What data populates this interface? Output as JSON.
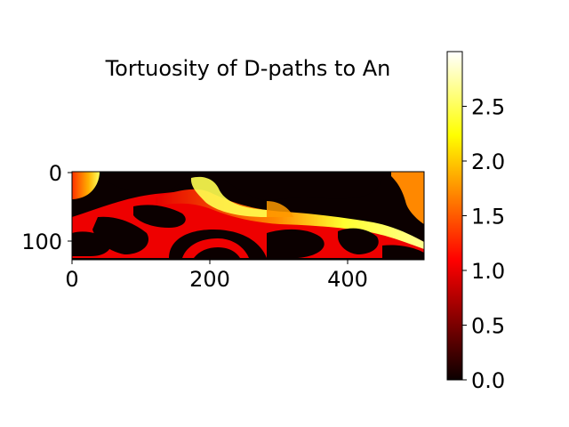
{
  "chart_data": {
    "type": "heatmap",
    "title": "Tortuosity of D-paths to An",
    "xlabel": "",
    "ylabel": "",
    "image_extent": {
      "x": [
        0,
        512
      ],
      "y": [
        128,
        0
      ]
    },
    "x_ticks": [
      0,
      200,
      400
    ],
    "x_tick_labels": [
      "0",
      "200",
      "400"
    ],
    "y_ticks": [
      0,
      100
    ],
    "y_tick_labels": [
      "0",
      "100"
    ],
    "colorbar": {
      "colormap": "hot",
      "range": [
        0.0,
        3.0
      ],
      "ticks": [
        0.0,
        0.5,
        1.0,
        1.5,
        2.0,
        2.5
      ],
      "tick_labels": [
        "0.0",
        "0.5",
        "1.0",
        "1.5",
        "2.0",
        "2.5"
      ]
    },
    "value_notes": "pore space shows tortuosity ~1.0-3.0 (red to white); solid phase is 0.0 (black)",
    "grid": false
  }
}
